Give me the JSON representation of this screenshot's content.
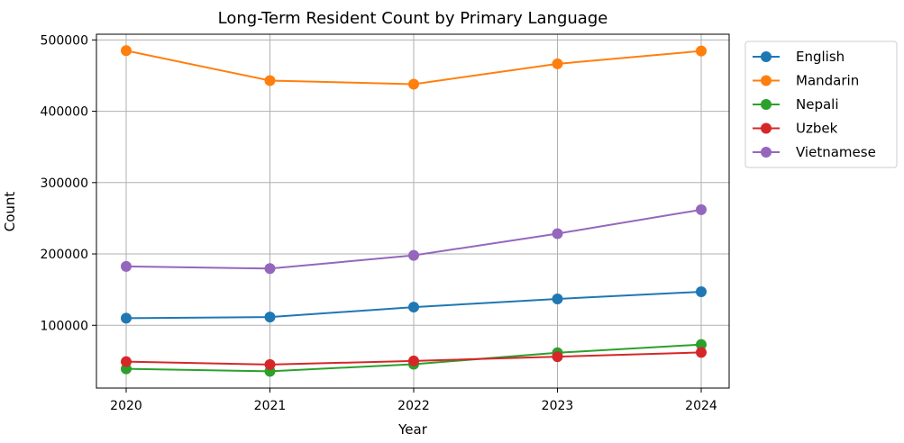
{
  "chart_data": {
    "type": "line",
    "title": "Long-Term Resident Count by Primary Language",
    "xlabel": "Year",
    "ylabel": "Count",
    "x": [
      2020,
      2021,
      2022,
      2023,
      2024
    ],
    "x_tick_labels": [
      "2020",
      "2021",
      "2022",
      "2023",
      "2024"
    ],
    "y_ticks": [
      100000,
      200000,
      300000,
      400000,
      500000
    ],
    "y_tick_labels": [
      "100000",
      "200000",
      "300000",
      "400000",
      "500000"
    ],
    "ylim": [
      12000,
      508000
    ],
    "grid": true,
    "legend_position": "outside-right-top",
    "series": [
      {
        "name": "English",
        "color": "#1f77b4",
        "values": [
          110000,
          111500,
          125500,
          137000,
          147000
        ]
      },
      {
        "name": "Mandarin",
        "color": "#ff7f0e",
        "values": [
          485000,
          443000,
          438000,
          466500,
          484500
        ]
      },
      {
        "name": "Nepali",
        "color": "#2ca02c",
        "values": [
          39000,
          35500,
          45500,
          61500,
          73000
        ]
      },
      {
        "name": "Uzbek",
        "color": "#d62728",
        "values": [
          49000,
          45000,
          50000,
          56000,
          62000
        ]
      },
      {
        "name": "Vietnamese",
        "color": "#9467bd",
        "values": [
          182500,
          179500,
          198000,
          228500,
          262000
        ]
      }
    ]
  }
}
